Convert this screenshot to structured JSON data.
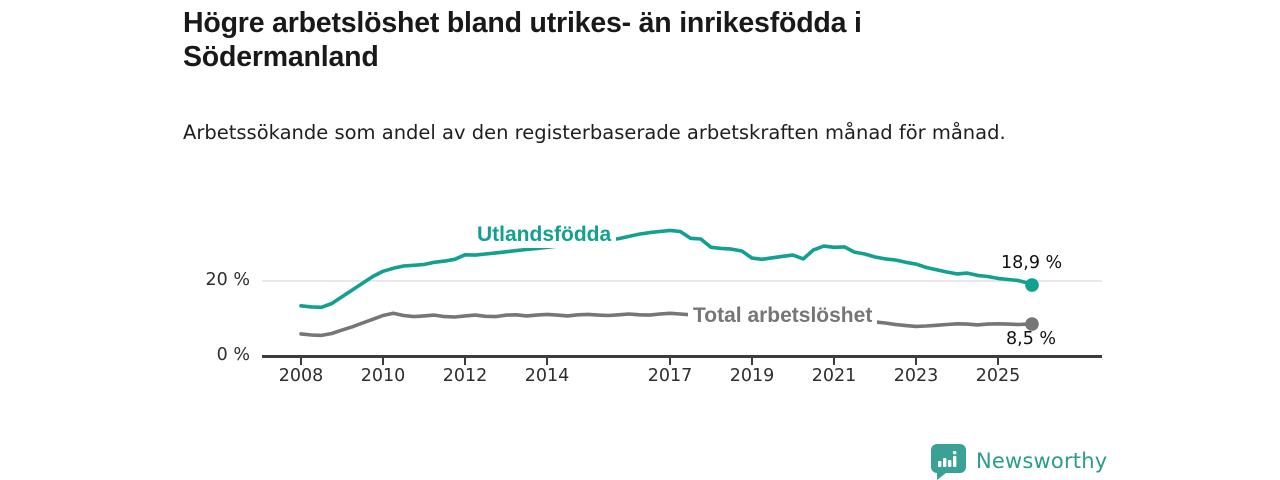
{
  "header": {
    "title": "Högre arbetslöshet bland utrikes- än inrikesfödda i Södermanland",
    "subtitle": "Arbetssökande som andel av den registerbaserade arbetskraften månad för månad."
  },
  "chart_data": {
    "type": "line",
    "title": "Högre arbetslöshet bland utrikes- än inrikesfödda i Södermanland",
    "subtitle": "Arbetssökande som andel av den registerbaserade arbetskraften månad för månad.",
    "grid": "single horizontal gridline at 20 %",
    "x_axis": {
      "ticks": [
        2008,
        2010,
        2012,
        2014,
        2017,
        2019,
        2021,
        2023,
        2025
      ],
      "range": [
        2007.9,
        2027.5
      ]
    },
    "y_axis": {
      "ticks": [
        {
          "value": 20,
          "label": "20 %",
          "gridline": true
        },
        {
          "value": 0,
          "label": "0 %",
          "gridline": false
        }
      ],
      "range": [
        0,
        38
      ],
      "unit": "%"
    },
    "x": [
      2008.0,
      2008.25,
      2008.5,
      2008.75,
      2009.0,
      2009.25,
      2009.5,
      2009.75,
      2010.0,
      2010.25,
      2010.5,
      2010.75,
      2011.0,
      2011.25,
      2011.5,
      2011.75,
      2012.0,
      2012.25,
      2012.5,
      2012.75,
      2013.0,
      2013.25,
      2013.5,
      2013.75,
      2014.0,
      2014.25,
      2014.5,
      2014.75,
      2015.0,
      2015.25,
      2015.5,
      2015.75,
      2016.0,
      2016.25,
      2016.5,
      2016.75,
      2017.0,
      2017.25,
      2017.5,
      2017.75,
      2018.0,
      2018.25,
      2018.5,
      2018.75,
      2019.0,
      2019.25,
      2019.5,
      2019.75,
      2020.0,
      2020.25,
      2020.5,
      2020.75,
      2021.0,
      2021.25,
      2021.5,
      2021.75,
      2022.0,
      2022.25,
      2022.5,
      2022.75,
      2023.0,
      2023.25,
      2023.5,
      2023.75,
      2024.0,
      2024.25,
      2024.5,
      2024.75,
      2025.0,
      2025.25,
      2025.5,
      2025.75,
      2025.83
    ],
    "series": [
      {
        "id": "utlandsfodda",
        "name": "Utlandsfödda",
        "color": "#12a091",
        "end_value": 18.9,
        "end_label": "18,9 %",
        "values": [
          13.4,
          13.1,
          13.0,
          14.0,
          15.8,
          17.6,
          19.4,
          21.2,
          22.6,
          23.4,
          24.0,
          24.2,
          24.4,
          25.0,
          25.3,
          25.8,
          27.0,
          26.9,
          27.2,
          27.5,
          27.8,
          28.1,
          28.4,
          28.7,
          29.0,
          29.3,
          29.6,
          29.9,
          30.2,
          30.5,
          30.9,
          31.3,
          31.9,
          32.5,
          32.9,
          33.2,
          33.5,
          33.2,
          31.4,
          31.2,
          29.0,
          28.7,
          28.5,
          28.0,
          26.1,
          25.8,
          26.2,
          26.6,
          26.9,
          25.9,
          28.3,
          29.3,
          29.0,
          29.1,
          27.7,
          27.2,
          26.4,
          25.9,
          25.6,
          25.0,
          24.5,
          23.6,
          23.0,
          22.4,
          21.9,
          22.1,
          21.5,
          21.2,
          20.7,
          20.4,
          20.1,
          19.4,
          18.9
        ]
      },
      {
        "id": "total",
        "name": "Total arbetslöshet",
        "color": "#767676",
        "end_value": 8.5,
        "end_label": "8,5 %",
        "values": [
          5.9,
          5.6,
          5.5,
          6.0,
          6.9,
          7.8,
          8.8,
          9.8,
          10.8,
          11.4,
          10.8,
          10.5,
          10.7,
          10.9,
          10.5,
          10.4,
          10.7,
          10.9,
          10.6,
          10.5,
          10.9,
          11.0,
          10.7,
          10.9,
          11.1,
          10.9,
          10.7,
          11.0,
          11.1,
          10.9,
          10.8,
          11.0,
          11.2,
          11.0,
          10.9,
          11.2,
          11.4,
          11.2,
          11.0,
          10.8,
          10.5,
          10.2,
          10.0,
          9.7,
          9.4,
          9.1,
          9.0,
          9.1,
          9.3,
          10.4,
          11.0,
          11.2,
          11.0,
          10.5,
          10.0,
          9.5,
          9.1,
          8.8,
          8.4,
          8.1,
          7.9,
          8.0,
          8.2,
          8.4,
          8.6,
          8.5,
          8.3,
          8.5,
          8.6,
          8.5,
          8.4,
          8.5,
          8.5
        ]
      }
    ],
    "colors": {
      "utlandsfodda_line": "#12a091",
      "total_line": "#767676",
      "gridline": "#d9d9d9",
      "axis": "#3c3c3c",
      "text": "#191919"
    }
  },
  "branding": {
    "logo_text": "Newsworthy",
    "logo_color": "#2a9c8e"
  }
}
